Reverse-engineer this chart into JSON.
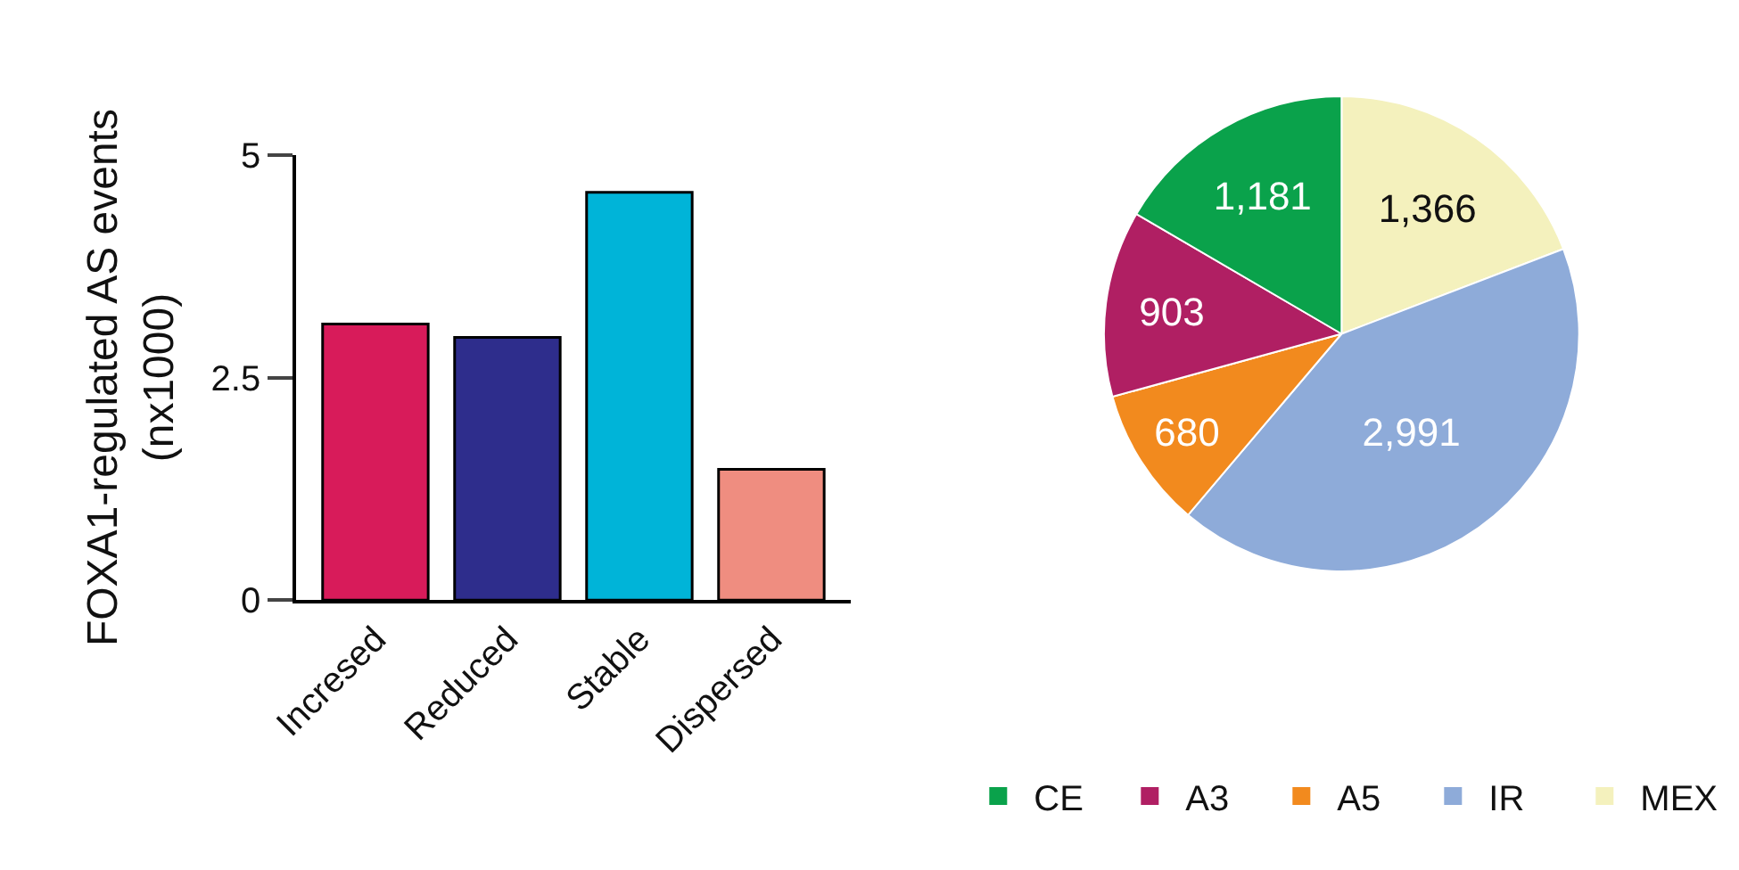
{
  "chart_data": [
    {
      "type": "bar",
      "ylabel": "FOXA1-regulated AS events\n(nx1000)",
      "categories": [
        "Incresed",
        "Reduced",
        "Stable",
        "Dispersed"
      ],
      "values": [
        3.1,
        2.95,
        4.58,
        1.47
      ],
      "colors": [
        "#d81b5a",
        "#2e2d8c",
        "#00b4d8",
        "#ef8d80"
      ],
      "ylim": [
        0,
        5
      ],
      "yticks": [
        0,
        2.5,
        5
      ]
    },
    {
      "type": "pie",
      "categories": [
        "MEX",
        "IR",
        "A5",
        "A3",
        "CE"
      ],
      "values": [
        1366,
        2991,
        680,
        903,
        1181
      ],
      "value_labels": [
        "1,366",
        "2,991",
        "680",
        "903",
        "1,181"
      ],
      "colors": [
        "#f4f1bd",
        "#8eabd9",
        "#f28a1e",
        "#b01f63",
        "#0aa24b"
      ],
      "legend": "bottom"
    }
  ]
}
